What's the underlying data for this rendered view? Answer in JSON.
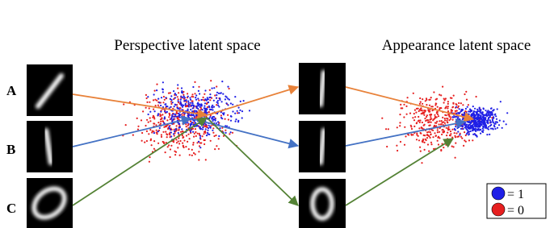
{
  "panels": {
    "perspective": "Perspective latent space",
    "appearance": "Appearance latent space"
  },
  "rows": [
    "A",
    "B",
    "C"
  ],
  "legend": [
    {
      "label": "= 1",
      "color": "#1f1fe6"
    },
    {
      "label": "= 0",
      "color": "#e61f1f"
    }
  ]
}
